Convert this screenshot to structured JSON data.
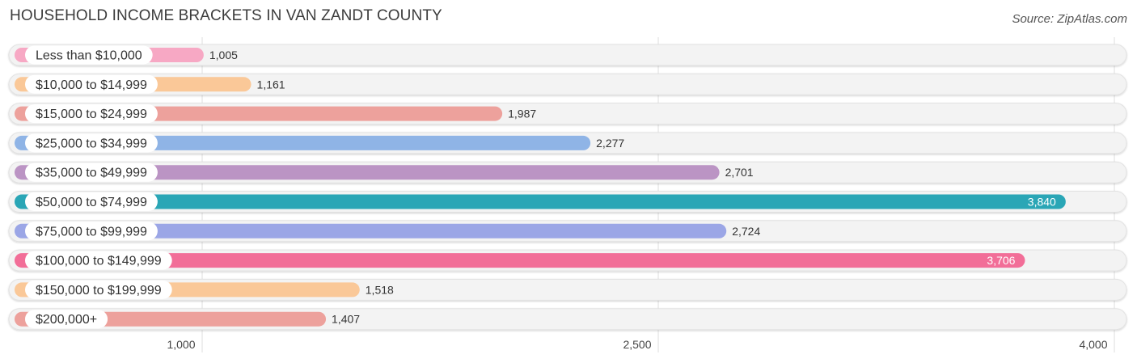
{
  "title": "HOUSEHOLD INCOME BRACKETS IN VAN ZANDT COUNTY",
  "source": "Source: ZipAtlas.com",
  "chart_data": {
    "type": "bar",
    "orientation": "horizontal",
    "title": "HOUSEHOLD INCOME BRACKETS IN VAN ZANDT COUNTY",
    "categories": [
      "Less than $10,000",
      "$10,000 to $14,999",
      "$15,000 to $24,999",
      "$25,000 to $34,999",
      "$35,000 to $49,999",
      "$50,000 to $74,999",
      "$75,000 to $99,999",
      "$100,000 to $149,999",
      "$150,000 to $199,999",
      "$200,000+"
    ],
    "values": [
      1005,
      1161,
      1987,
      2277,
      2701,
      3840,
      2724,
      3706,
      1518,
      1407
    ],
    "value_labels": [
      "1,005",
      "1,161",
      "1,987",
      "2,277",
      "2,701",
      "3,840",
      "2,724",
      "3,706",
      "1,518",
      "1,407"
    ],
    "colors": [
      "#f7a8c4",
      "#fac898",
      "#eda19c",
      "#8fb4e6",
      "#bb94c4",
      "#2aa6b6",
      "#9ba6e6",
      "#f26e98",
      "#fac898",
      "#eda19c"
    ],
    "highlight_inside": [
      false,
      false,
      false,
      false,
      false,
      true,
      false,
      true,
      false,
      false
    ],
    "xticks": [
      1000,
      2500,
      4000
    ],
    "xtick_labels": [
      "1,000",
      "2,500",
      "4,000"
    ],
    "xlim": [
      370,
      4000
    ],
    "grid": true
  }
}
